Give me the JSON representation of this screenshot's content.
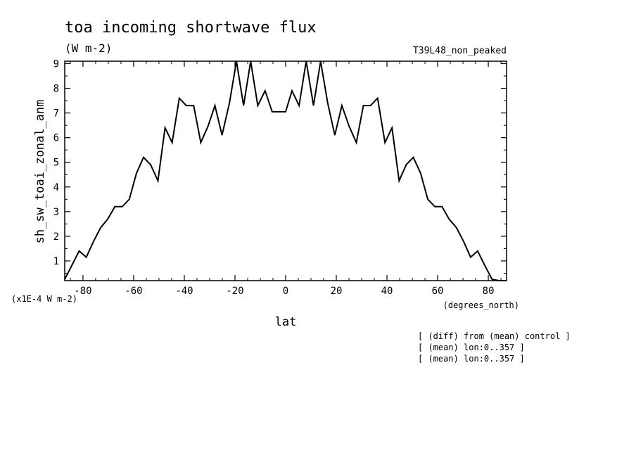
{
  "chart_data": {
    "type": "line",
    "title": "toa incoming shortwave flux",
    "subtitle": "(W m-2)",
    "run_label": "T39L48_non_peaked",
    "ylabel": "sh_sw_toai_zonal_anm",
    "y_scale_note": "(x1E-4 W m-2)",
    "xlabel": "lat",
    "x_units": "(degrees_north)",
    "xlim": [
      -87.2,
      87.2
    ],
    "ylim": [
      0.2,
      9.1
    ],
    "x_ticks": [
      -80,
      -60,
      -40,
      -20,
      0,
      20,
      40,
      60,
      80
    ],
    "x_tick_labels": [
      "-80",
      "-60",
      "-40",
      "-20",
      "0",
      "20",
      "40",
      "60",
      "80"
    ],
    "y_ticks": [
      1,
      2,
      3,
      4,
      5,
      6,
      7,
      8,
      9
    ],
    "y_tick_labels": [
      "1",
      "2",
      "3",
      "4",
      "5",
      "6",
      "7",
      "8",
      "9"
    ],
    "grid": false,
    "line_color": "#000000",
    "series": [
      {
        "x": [
          -87.2,
          -81.5,
          -78.7,
          -75.8,
          -73.0,
          -70.2,
          -67.4,
          -64.5,
          -61.7,
          -58.9,
          -56.1,
          -53.3,
          -50.4,
          -47.6,
          -44.8,
          -42.0,
          -39.2,
          -36.3,
          -33.5,
          -30.7,
          -27.9,
          -25.1,
          -22.2,
          -19.4,
          -16.6,
          -13.8,
          -11.0,
          -8.1,
          -5.3,
          -2.5,
          0.0,
          2.5,
          5.3,
          8.1,
          11.0,
          13.8,
          16.6,
          19.4,
          22.2,
          25.1,
          27.9,
          30.7,
          33.5,
          36.3,
          39.2,
          42.0,
          44.8,
          47.6,
          50.4,
          53.3,
          56.1,
          58.9,
          61.7,
          64.5,
          67.4,
          70.2,
          73.0,
          75.8,
          78.7,
          81.5,
          84.3,
          87.2
        ],
        "values": [
          0.25,
          1.4,
          1.15,
          1.8,
          2.35,
          2.7,
          3.2,
          3.2,
          3.5,
          4.55,
          5.2,
          4.9,
          4.25,
          6.4,
          5.8,
          7.6,
          7.3,
          7.3,
          5.8,
          6.45,
          7.3,
          6.1,
          7.4,
          9.1,
          7.3,
          9.1,
          7.3,
          7.9,
          7.05,
          7.05,
          7.05,
          7.9,
          7.3,
          9.1,
          7.3,
          9.1,
          7.4,
          6.1,
          7.3,
          6.45,
          5.8,
          7.3,
          7.3,
          7.6,
          5.8,
          6.4,
          4.25,
          4.9,
          5.2,
          4.55,
          3.5,
          3.2,
          3.2,
          2.7,
          2.35,
          1.8,
          1.15,
          1.4,
          0.8,
          0.25,
          0.2,
          0.2
        ]
      }
    ]
  },
  "annotations": [
    "[ (diff) from (mean) control ]",
    "[ (mean) lon:0..357 ]",
    "[ (mean) lon:0..357 ]"
  ]
}
